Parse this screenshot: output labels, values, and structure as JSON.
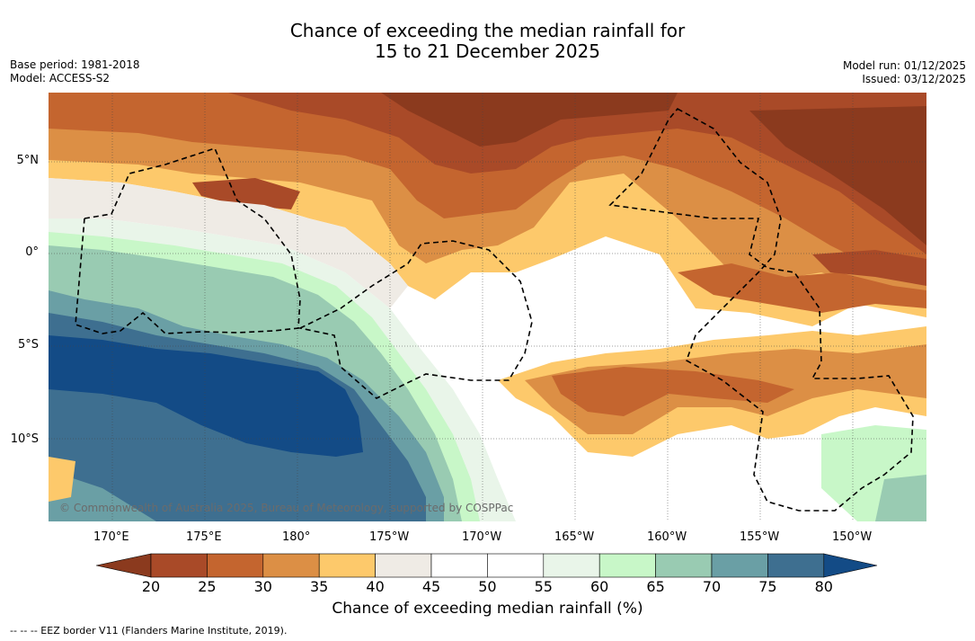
{
  "title": {
    "line1": "Chance of exceeding the median rainfall for",
    "line2": "15 to 21 December 2025"
  },
  "meta_left": {
    "base_period": "Base period: 1981-2018",
    "model": "Model: ACCESS-S2"
  },
  "meta_right": {
    "model_run": "Model run: 01/12/2025",
    "issued": "Issued: 03/12/2025"
  },
  "map": {
    "lon_labels": [
      "170°E",
      "175°E",
      "180°",
      "175°W",
      "170°W",
      "165°W",
      "160°W",
      "155°W",
      "150°W"
    ],
    "lat_labels": [
      "5°N",
      "0°",
      "5°S",
      "10°S"
    ],
    "copyright": "© Commonwealth of Australia 2025, Bureau of Meteorology, supported by COSPPac"
  },
  "colorbar": {
    "ticks": [
      "20",
      "25",
      "30",
      "35",
      "40",
      "45",
      "50",
      "55",
      "60",
      "65",
      "70",
      "75",
      "80"
    ],
    "colors": [
      "#8b3a1e",
      "#a94a28",
      "#c4652f",
      "#dc8f45",
      "#fdc96b",
      "#efebe5",
      "#ffffff",
      "#ffffff",
      "#e9f5e9",
      "#c8f7c8",
      "#99cbb2",
      "#6a9fa5",
      "#3e6f90",
      "#134b86"
    ],
    "title": "Chance of exceeding median rainfall (%)"
  },
  "footnote": "--  --  -- EEZ border V11 (Flanders Marine Institute, 2019)."
}
